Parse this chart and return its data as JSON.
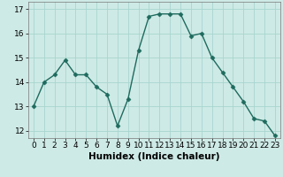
{
  "x": [
    0,
    1,
    2,
    3,
    4,
    5,
    6,
    7,
    8,
    9,
    10,
    11,
    12,
    13,
    14,
    15,
    16,
    17,
    18,
    19,
    20,
    21,
    22,
    23
  ],
  "y": [
    13.0,
    14.0,
    14.3,
    14.9,
    14.3,
    14.3,
    13.8,
    13.5,
    12.2,
    13.3,
    15.3,
    16.7,
    16.8,
    16.8,
    16.8,
    15.9,
    16.0,
    15.0,
    14.4,
    13.8,
    13.2,
    12.5,
    12.4,
    11.8
  ],
  "line_color": "#1e6b5e",
  "marker": "D",
  "marker_size": 2.5,
  "line_width": 1.0,
  "xlabel": "Humidex (Indice chaleur)",
  "xlim": [
    -0.5,
    23.5
  ],
  "ylim": [
    11.7,
    17.3
  ],
  "yticks": [
    12,
    13,
    14,
    15,
    16,
    17
  ],
  "xticks": [
    0,
    1,
    2,
    3,
    4,
    5,
    6,
    7,
    8,
    9,
    10,
    11,
    12,
    13,
    14,
    15,
    16,
    17,
    18,
    19,
    20,
    21,
    22,
    23
  ],
  "bg_color": "#ceeae6",
  "grid_color": "#a8d5cf",
  "tick_fontsize": 6.5,
  "xlabel_fontsize": 7.5
}
